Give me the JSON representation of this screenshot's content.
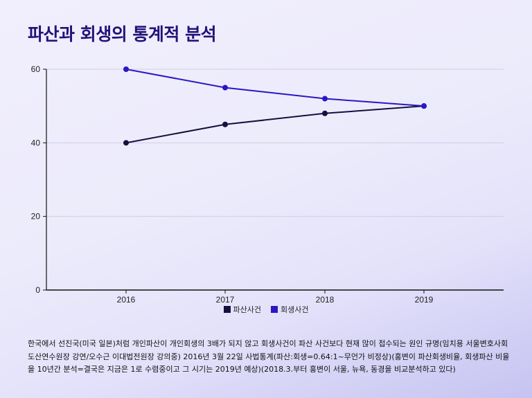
{
  "title": "파산과 회생의 통계적 분석",
  "colors": {
    "bankruptcy": "#15103c",
    "rehabilitation": "#2a17c4",
    "grid": "#cfcde4"
  },
  "chart_data": {
    "type": "line",
    "x": [
      "2016",
      "2017",
      "2018",
      "2019"
    ],
    "series": [
      {
        "name": "파산사건",
        "values": [
          40,
          45,
          48,
          50
        ]
      },
      {
        "name": "회생사건",
        "values": [
          60,
          55,
          52,
          50
        ]
      }
    ],
    "yticks": [
      0,
      20,
      40,
      60
    ],
    "ylim": [
      0,
      60
    ],
    "grid": true,
    "legend": "bottom-center"
  },
  "note": "한국에서 선진국(미국 일본)처럼 개인파산이 개인회생의 3배가 되지 않고 회생사건이 파산 사건보다 현재 많이 접수되는 원인 규명(임치용 서울변호사회 도산연수원장 강연/오수근 이대법전원장 강의중) 2016년 3월 22일 사법통계(파산:회생=0.64:1~무언가 비정상)(홍변이 파산회생비율, 회생파산 비율을 10년간 분석=결국은 지금은 1로 수렴중이고 그 시기는 2019년 예상)(2018.3.부터 홍변이 서울, 뉴욕, 동경을 비교분석하고 있다)"
}
